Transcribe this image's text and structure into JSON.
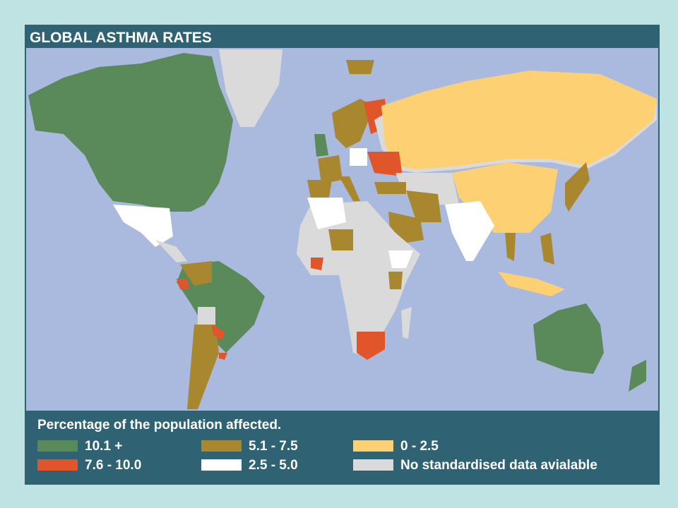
{
  "header": {
    "title": "GLOBAL ASTHMA RATES"
  },
  "legend": {
    "title": "Percentage of the population affected.",
    "items": [
      {
        "label": "10.1 +",
        "color": "#5b8a5a"
      },
      {
        "label": "7.6 - 10.0",
        "color": "#e0552a"
      },
      {
        "label": "5.1 - 7.5",
        "color": "#a8872f"
      },
      {
        "label": "2.5 - 5.0",
        "color": "#ffffff"
      },
      {
        "label": "0 - 2.5",
        "color": "#fdd173"
      },
      {
        "label": "No standardised data avialable",
        "color": "#dadada"
      }
    ]
  }
}
